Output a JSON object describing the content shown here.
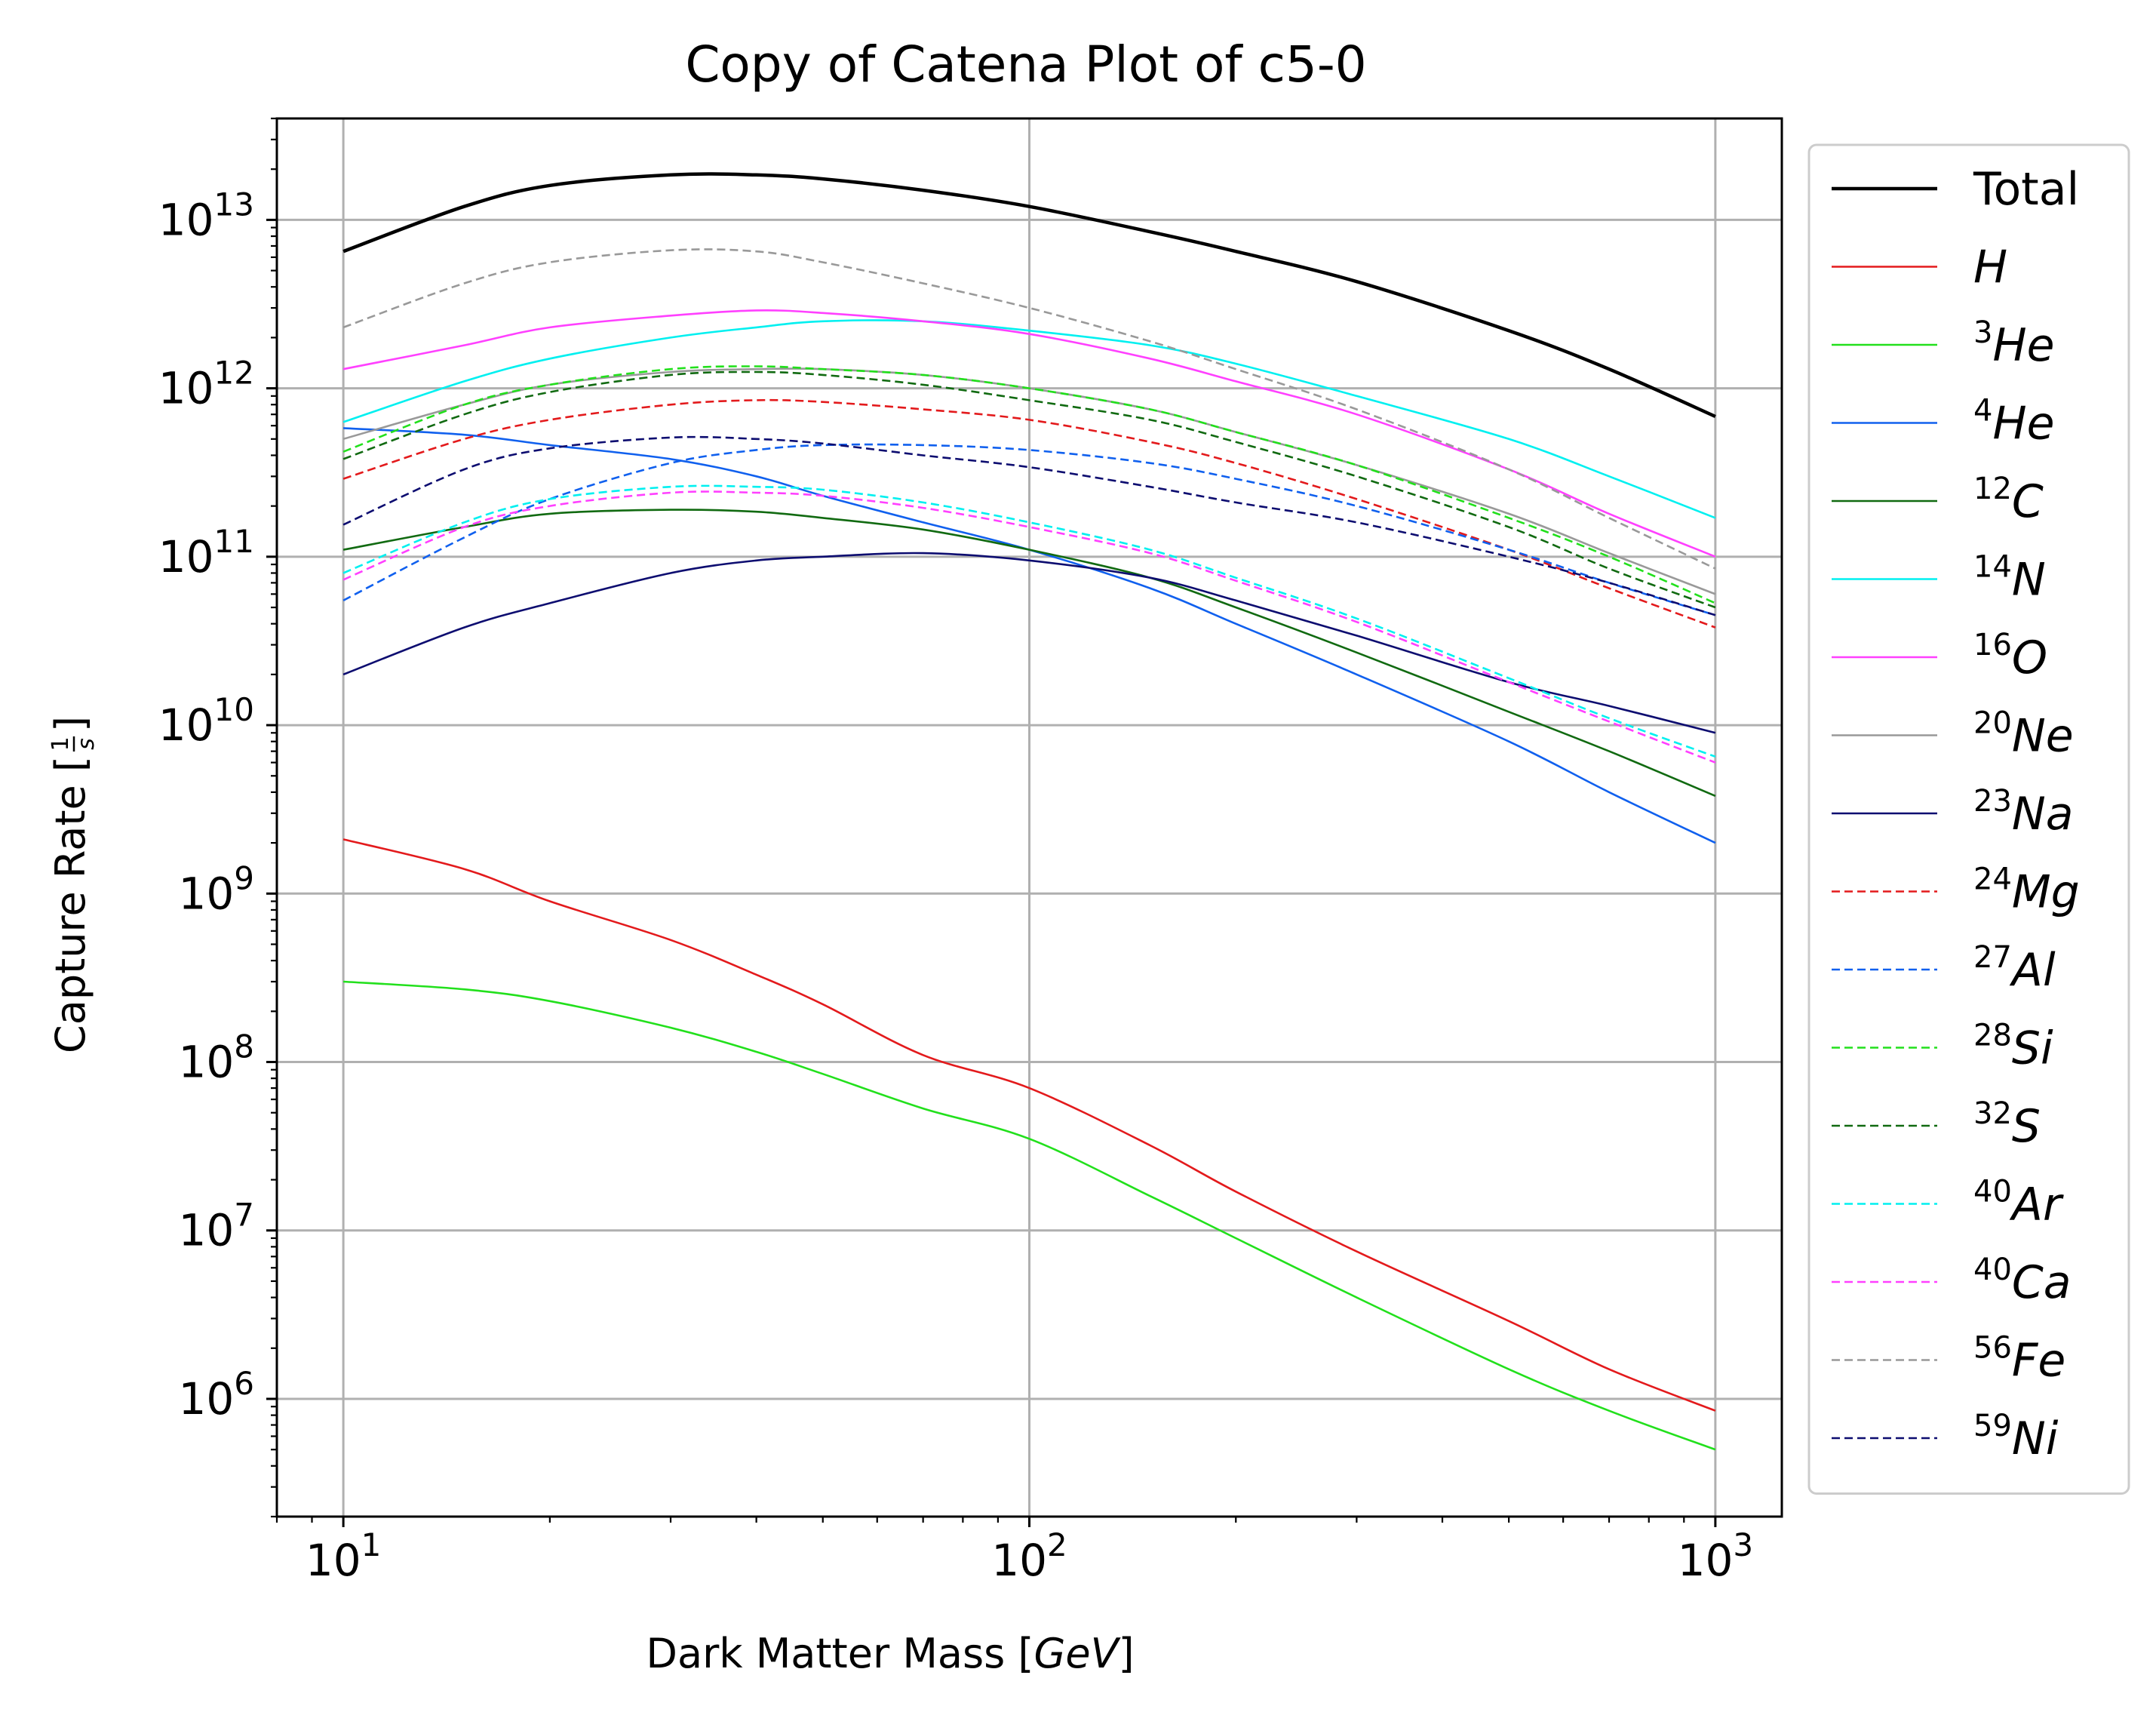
{
  "chart_data": {
    "type": "line",
    "title": "Copy of Catena Plot of c5-0",
    "xlabel": "Dark Matter Mass [GeV]",
    "ylabel": "Capture Rate [1/s]",
    "xscale": "log",
    "yscale": "log",
    "xlim": [
      8,
      1250
    ],
    "ylim": [
      200000,
      40000000000000.0
    ],
    "grid": true,
    "legend_position": "outside-right",
    "x_ticks": [
      10,
      100,
      1000
    ],
    "y_ticks": [
      1000000.0,
      10000000.0,
      100000000.0,
      1000000000.0,
      10000000000.0,
      100000000000.0,
      1000000000000.0,
      10000000000000.0
    ],
    "x": [
      10,
      15,
      20,
      30,
      40,
      50,
      70,
      100,
      150,
      200,
      300,
      500,
      700,
      1000
    ],
    "series": [
      {
        "name": "Total",
        "style": "solid",
        "color": "#000000",
        "values": [
          6500000000000.0,
          12000000000000.0,
          16000000000000.0,
          18500000000000.0,
          18500000000000.0,
          17500000000000.0,
          15000000000000.0,
          12000000000000.0,
          8500000000000.0,
          6500000000000.0,
          4300000000000.0,
          2200000000000.0,
          1300000000000.0,
          680000000000.0
        ]
      },
      {
        "name": "H",
        "style": "solid",
        "color": "#e31a1c",
        "values": [
          2100000000.0,
          1400000000.0,
          900000000.0,
          530000000.0,
          330000000.0,
          220000000.0,
          110000000.0,
          70000000.0,
          32000000.0,
          17000000.0,
          7500000.0,
          2900000.0,
          1500000.0,
          850000.0
        ]
      },
      {
        "name": "³He",
        "style": "solid",
        "color": "#22e01c",
        "values": [
          300000000.0,
          270000000.0,
          230000000.0,
          160000000.0,
          115000000.0,
          85000000.0,
          53000000.0,
          35000000.0,
          16000000.0,
          9000000.0,
          4000000.0,
          1500000.0,
          850000.0,
          500000.0
        ]
      },
      {
        "name": "⁴He",
        "style": "solid",
        "color": "#1060ee",
        "values": [
          580000000000.0,
          530000000000.0,
          460000000000.0,
          380000000000.0,
          300000000000.0,
          230000000000.0,
          160000000000.0,
          110000000000.0,
          65000000000.0,
          40000000000.0,
          20000000000.0,
          8000000000.0,
          4000000000.0,
          2000000000.0
        ]
      },
      {
        "name": "¹²C",
        "style": "solid",
        "color": "#116a11",
        "values": [
          110000000000.0,
          150000000000.0,
          180000000000.0,
          190000000000.0,
          185000000000.0,
          170000000000.0,
          145000000000.0,
          110000000000.0,
          75000000000.0,
          50000000000.0,
          27000000000.0,
          12000000000.0,
          7000000000.0,
          3800000000.0
        ]
      },
      {
        "name": "¹⁴N",
        "style": "solid",
        "color": "#00f0f0",
        "values": [
          630000000000.0,
          1100000000000.0,
          1500000000000.0,
          2000000000000.0,
          2300000000000.0,
          2500000000000.0,
          2500000000000.0,
          2200000000000.0,
          1800000000000.0,
          1400000000000.0,
          900000000000.0,
          500000000000.0,
          300000000000.0,
          170000000000.0
        ]
      },
      {
        "name": "¹⁶O",
        "style": "solid",
        "color": "#ff40ff",
        "values": [
          1300000000000.0,
          1800000000000.0,
          2300000000000.0,
          2700000000000.0,
          2900000000000.0,
          2800000000000.0,
          2500000000000.0,
          2100000000000.0,
          1500000000000.0,
          1100000000000.0,
          700000000000.0,
          330000000000.0,
          180000000000.0,
          100000000000.0
        ]
      },
      {
        "name": "²⁰Ne",
        "style": "solid",
        "color": "#999999",
        "values": [
          500000000000.0,
          800000000000.0,
          1050000000000.0,
          1250000000000.0,
          1300000000000.0,
          1300000000000.0,
          1200000000000.0,
          1000000000000.0,
          750000000000.0,
          550000000000.0,
          350000000000.0,
          180000000000.0,
          105000000000.0,
          60000000000.0
        ]
      },
      {
        "name": "²³Na",
        "style": "solid",
        "color": "#0d0d70",
        "values": [
          20000000000.0,
          38000000000.0,
          53000000000.0,
          80000000000.0,
          95000000000.0,
          100000000000.0,
          105000000000.0,
          95000000000.0,
          75000000000.0,
          55000000000.0,
          34000000000.0,
          18000000000.0,
          13000000000.0,
          9000000000.0
        ]
      },
      {
        "name": "²⁴Mg",
        "style": "dashed",
        "color": "#e31a1c",
        "values": [
          290000000000.0,
          500000000000.0,
          650000000000.0,
          800000000000.0,
          850000000000.0,
          830000000000.0,
          750000000000.0,
          650000000000.0,
          480000000000.0,
          360000000000.0,
          220000000000.0,
          110000000000.0,
          65000000000.0,
          38000000000.0
        ]
      },
      {
        "name": "²⁷Al",
        "style": "dashed",
        "color": "#1060ee",
        "values": [
          55000000000.0,
          130000000000.0,
          220000000000.0,
          360000000000.0,
          430000000000.0,
          460000000000.0,
          460000000000.0,
          430000000000.0,
          360000000000.0,
          290000000000.0,
          200000000000.0,
          110000000000.0,
          70000000000.0,
          45000000000.0
        ]
      },
      {
        "name": "²⁸Si",
        "style": "dashed",
        "color": "#22e01c",
        "values": [
          420000000000.0,
          800000000000.0,
          1050000000000.0,
          1300000000000.0,
          1350000000000.0,
          1300000000000.0,
          1200000000000.0,
          1000000000000.0,
          750000000000.0,
          550000000000.0,
          350000000000.0,
          170000000000.0,
          100000000000.0,
          53000000000.0
        ]
      },
      {
        "name": "³²S",
        "style": "dashed",
        "color": "#116a11",
        "values": [
          380000000000.0,
          700000000000.0,
          950000000000.0,
          1200000000000.0,
          1250000000000.0,
          1200000000000.0,
          1050000000000.0,
          850000000000.0,
          650000000000.0,
          480000000000.0,
          300000000000.0,
          150000000000.0,
          85000000000.0,
          50000000000.0
        ]
      },
      {
        "name": "⁴⁰Ar",
        "style": "dashed",
        "color": "#00f0f0",
        "values": [
          80000000000.0,
          160000000000.0,
          220000000000.0,
          260000000000.0,
          260000000000.0,
          250000000000.0,
          210000000000.0,
          160000000000.0,
          110000000000.0,
          75000000000.0,
          43000000000.0,
          19000000000.0,
          11000000000.0,
          6500000000.0
        ]
      },
      {
        "name": "⁴⁰Ca",
        "style": "dashed",
        "color": "#ff40ff",
        "values": [
          73000000000.0,
          150000000000.0,
          200000000000.0,
          240000000000.0,
          240000000000.0,
          230000000000.0,
          195000000000.0,
          150000000000.0,
          105000000000.0,
          72000000000.0,
          41000000000.0,
          18000000000.0,
          10500000000.0,
          6000000000.0
        ]
      },
      {
        "name": "⁵⁶Fe",
        "style": "dashed",
        "color": "#999999",
        "values": [
          2300000000000.0,
          4200000000000.0,
          5600000000000.0,
          6600000000000.0,
          6500000000000.0,
          5600000000000.0,
          4200000000000.0,
          3000000000000.0,
          1900000000000.0,
          1300000000000.0,
          750000000000.0,
          330000000000.0,
          170000000000.0,
          85000000000.0
        ]
      },
      {
        "name": "⁵⁹Ni",
        "style": "dashed",
        "color": "#0d0d70",
        "values": [
          155000000000.0,
          330000000000.0,
          440000000000.0,
          510000000000.0,
          500000000000.0,
          470000000000.0,
          400000000000.0,
          340000000000.0,
          260000000000.0,
          210000000000.0,
          160000000000.0,
          100000000000.0,
          70000000000.0,
          45000000000.0
        ]
      }
    ]
  },
  "legend": {
    "entries": [
      {
        "prefix": "",
        "sup": "",
        "name": "Total",
        "italic": false
      },
      {
        "prefix": "",
        "sup": "",
        "name": "H",
        "italic": true
      },
      {
        "prefix": "",
        "sup": "3",
        "name": "He",
        "italic": true
      },
      {
        "prefix": "",
        "sup": "4",
        "name": "He",
        "italic": true
      },
      {
        "prefix": "",
        "sup": "12",
        "name": "C",
        "italic": true
      },
      {
        "prefix": "",
        "sup": "14",
        "name": "N",
        "italic": true
      },
      {
        "prefix": "",
        "sup": "16",
        "name": "O",
        "italic": true
      },
      {
        "prefix": "",
        "sup": "20",
        "name": "Ne",
        "italic": true
      },
      {
        "prefix": "",
        "sup": "23",
        "name": "Na",
        "italic": true
      },
      {
        "prefix": "",
        "sup": "24",
        "name": "Mg",
        "italic": true
      },
      {
        "prefix": "",
        "sup": "27",
        "name": "Al",
        "italic": true
      },
      {
        "prefix": "",
        "sup": "28",
        "name": "Si",
        "italic": true
      },
      {
        "prefix": "",
        "sup": "32",
        "name": "S",
        "italic": true
      },
      {
        "prefix": "",
        "sup": "40",
        "name": "Ar",
        "italic": true
      },
      {
        "prefix": "",
        "sup": "40",
        "name": "Ca",
        "italic": true
      },
      {
        "prefix": "",
        "sup": "56",
        "name": "Fe",
        "italic": true
      },
      {
        "prefix": "",
        "sup": "59",
        "name": "Ni",
        "italic": true
      }
    ]
  },
  "labels": {
    "xlabel_plain": "Dark Matter Mass [",
    "xlabel_unit": "GeV",
    "xlabel_close": "]",
    "ylabel_plain": "Capture Rate [",
    "ylabel_num": "1",
    "ylabel_den": "s",
    "ylabel_close": "]",
    "tick_base": "10"
  },
  "colors": {
    "grid": "#b0b0b0",
    "axes": "#000000",
    "legend_border": "#cccccc"
  }
}
